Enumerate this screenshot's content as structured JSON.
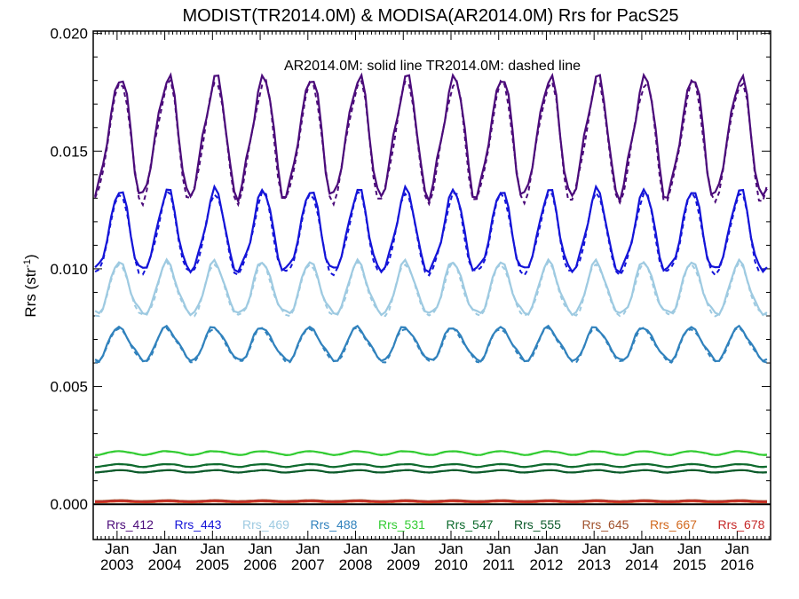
{
  "chart_data": {
    "type": "line",
    "title": "MODIST(TR2014.0M) & MODISA(AR2014.0M)  Rrs for PacS25",
    "ylabel": "Rrs (str",
    "ylabel_sup": "-1",
    "ylabel_tail": ")",
    "annotation": "AR2014.0M: solid line   TR2014.0M: dashed line",
    "xlim": [
      2002.5,
      2016.7
    ],
    "ylim": [
      -0.0015,
      0.0201
    ],
    "yticks": [
      0.0,
      0.005,
      0.01,
      0.015,
      0.02
    ],
    "ytick_labels": [
      "0.000",
      "0.005",
      "0.010",
      "0.015",
      "0.020"
    ],
    "xticks": [
      2003,
      2004,
      2005,
      2006,
      2007,
      2008,
      2009,
      2010,
      2011,
      2012,
      2013,
      2014,
      2015,
      2016
    ],
    "xtick_month": "Jan",
    "xtick_years": [
      "2003",
      "2004",
      "2005",
      "2006",
      "2007",
      "2008",
      "2009",
      "2010",
      "2011",
      "2012",
      "2013",
      "2014",
      "2015",
      "2016"
    ],
    "zero_line": true,
    "legend_placement": "bottom",
    "series": [
      {
        "name": "Rrs_412",
        "color": "#4b0b7a",
        "mean": 0.0156,
        "amp": 0.0025
      },
      {
        "name": "Rrs_443",
        "color": "#1414d8",
        "mean": 0.0115,
        "amp": 0.0017
      },
      {
        "name": "Rrs_469",
        "color": "#9ecae1",
        "mean": 0.0091,
        "amp": 0.0011
      },
      {
        "name": "Rrs_488",
        "color": "#3182bd",
        "mean": 0.0068,
        "amp": 0.0007
      },
      {
        "name": "Rrs_531",
        "color": "#33cc33",
        "mean": 0.00218,
        "amp": 8e-05
      },
      {
        "name": "Rrs_547",
        "color": "#0e6b2e",
        "mean": 0.00165,
        "amp": 6e-05
      },
      {
        "name": "Rrs_555",
        "color": "#0b5a2a",
        "mean": 0.0014,
        "amp": 5e-05
      },
      {
        "name": "Rrs_645",
        "color": "#a0522d",
        "mean": 0.00015,
        "amp": 2e-05
      },
      {
        "name": "Rrs_667",
        "color": "#d2691e",
        "mean": 0.0001,
        "amp": 2e-05
      },
      {
        "name": "Rrs_678",
        "color": "#c62828",
        "mean": 0.00012,
        "amp": 2e-05
      }
    ]
  }
}
